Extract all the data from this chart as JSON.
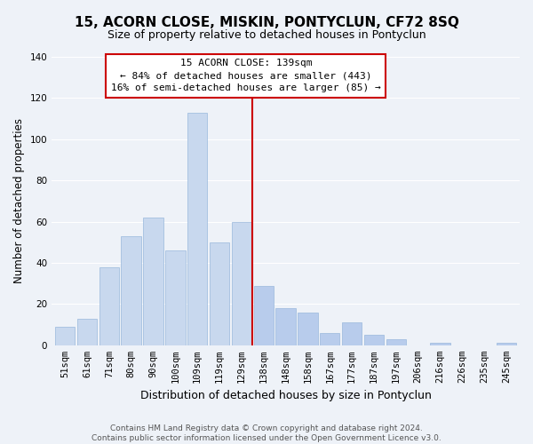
{
  "title": "15, ACORN CLOSE, MISKIN, PONTYCLUN, CF72 8SQ",
  "subtitle": "Size of property relative to detached houses in Pontyclun",
  "xlabel": "Distribution of detached houses by size in Pontyclun",
  "ylabel": "Number of detached properties",
  "bar_labels": [
    "51sqm",
    "61sqm",
    "71sqm",
    "80sqm",
    "90sqm",
    "100sqm",
    "109sqm",
    "119sqm",
    "129sqm",
    "138sqm",
    "148sqm",
    "158sqm",
    "167sqm",
    "177sqm",
    "187sqm",
    "197sqm",
    "206sqm",
    "216sqm",
    "226sqm",
    "235sqm",
    "245sqm"
  ],
  "bar_values": [
    9,
    13,
    38,
    53,
    62,
    46,
    113,
    50,
    60,
    29,
    18,
    16,
    6,
    11,
    5,
    3,
    0,
    1,
    0,
    0,
    1
  ],
  "bar_color_left": "#c8d8ee",
  "bar_color_right": "#b8ccec",
  "property_line_index": 9,
  "property_line_label": "15 ACORN CLOSE: 139sqm",
  "annotation_line1": "← 84% of detached houses are smaller (443)",
  "annotation_line2": "16% of semi-detached houses are larger (85) →",
  "annotation_box_color": "#ffffff",
  "annotation_box_edgecolor": "#cc0000",
  "vertical_line_color": "#cc0000",
  "ylim": [
    0,
    140
  ],
  "yticks": [
    0,
    20,
    40,
    60,
    80,
    100,
    120,
    140
  ],
  "footer_line1": "Contains HM Land Registry data © Crown copyright and database right 2024.",
  "footer_line2": "Contains public sector information licensed under the Open Government Licence v3.0.",
  "bg_color": "#eef2f8",
  "plot_bg_color": "#eef2f8",
  "grid_color": "#ffffff",
  "title_fontsize": 11,
  "subtitle_fontsize": 9,
  "xlabel_fontsize": 9,
  "ylabel_fontsize": 8.5,
  "tick_fontsize": 7.5,
  "annotation_fontsize": 8,
  "footer_fontsize": 6.5
}
